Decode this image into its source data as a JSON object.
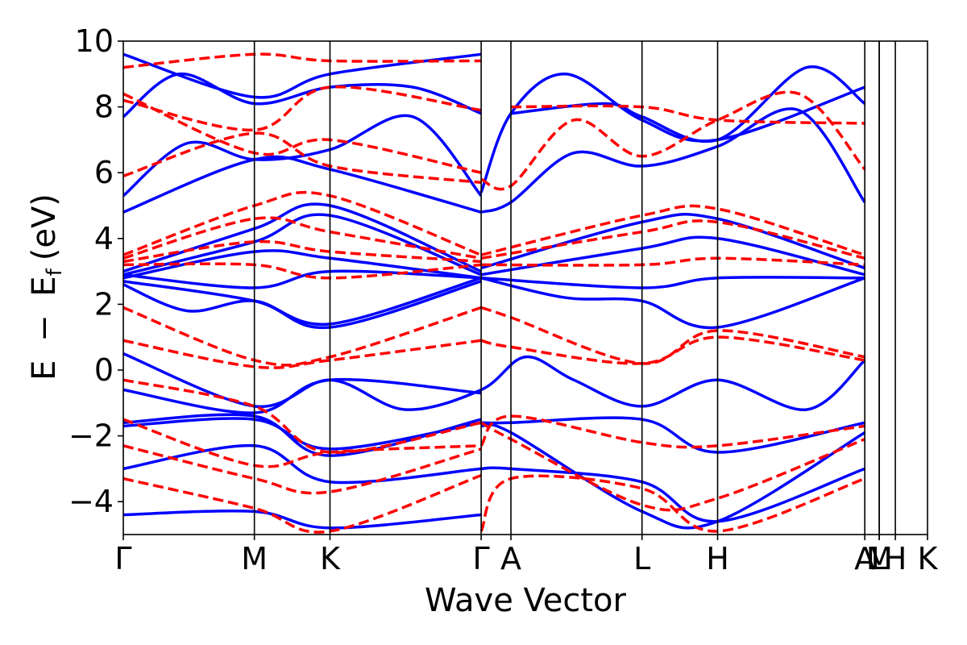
{
  "chart_data": {
    "type": "line",
    "title": "",
    "xlabel": "Wave Vector",
    "ylabel": {
      "E": "E",
      "minus": "−",
      "sub_E": "E",
      "sub": "f",
      "unit": "(eV)"
    },
    "ylim": [
      -5,
      10
    ],
    "y_ticks": [
      -4,
      -2,
      0,
      2,
      4,
      6,
      8,
      10
    ],
    "y_tick_labels": [
      "−4",
      "−2",
      "0",
      "2",
      "4",
      "6",
      "8",
      "10"
    ],
    "grid": false,
    "kpath_length": 1.0,
    "kpoints": [
      {
        "label": "Γ",
        "x": 0.0
      },
      {
        "label": "M",
        "x": 0.163
      },
      {
        "label": "K",
        "x": 0.257
      },
      {
        "label": "Γ",
        "x": 0.445
      },
      {
        "label": "A",
        "x": 0.482
      },
      {
        "label": "L",
        "x": 0.645
      },
      {
        "label": "H",
        "x": 0.739
      },
      {
        "label": "A",
        "x": 0.922
      },
      {
        "label": "L",
        "x": 0.94
      },
      {
        "label": "M",
        "x": 0.94
      },
      {
        "label": "H",
        "x": 0.96
      },
      {
        "label": "K",
        "x": 1.0
      }
    ],
    "colors": {
      "solid": "#0000ff",
      "dashed": "#ff0000",
      "axes": "#000000"
    },
    "series": [
      {
        "style": "solid",
        "color": "#0000ff",
        "bands": [
          {
            "x": [
              0,
              0.163,
              0.257,
              0.445
            ],
            "y": [
              4.8,
              6.4,
              6.1,
              4.8
            ]
          },
          {
            "x": [
              0,
              0.08,
              0.163,
              0.257,
              0.36,
              0.445
            ],
            "y": [
              5.3,
              6.9,
              6.4,
              6.7,
              7.7,
              5.3
            ]
          },
          {
            "x": [
              0.445,
              0.482,
              0.56,
              0.645,
              0.739,
              0.84,
              0.922
            ],
            "y": [
              4.8,
              5.1,
              6.6,
              6.2,
              6.8,
              7.9,
              5.1
            ]
          },
          {
            "x": [
              0.445,
              0.482,
              0.55,
              0.645,
              0.739,
              0.922
            ],
            "y": [
              5.4,
              7.8,
              9.0,
              7.6,
              7.0,
              8.6
            ]
          },
          {
            "x": [
              0,
              0.07,
              0.163,
              0.257,
              0.36,
              0.445
            ],
            "y": [
              7.7,
              9.0,
              8.1,
              8.6,
              8.6,
              7.8
            ]
          },
          {
            "x": [
              0,
              0.163,
              0.257,
              0.445
            ],
            "y": [
              9.6,
              8.3,
              9.0,
              9.6
            ]
          },
          {
            "x": [
              0.482,
              0.6,
              0.645,
              0.739,
              0.85,
              0.922
            ],
            "y": [
              7.8,
              8.1,
              7.7,
              7.0,
              9.2,
              8.1
            ]
          },
          {
            "x": [
              0,
              0.163,
              0.257,
              0.445
            ],
            "y": [
              3.0,
              4.3,
              5.0,
              3.0
            ]
          },
          {
            "x": [
              0,
              0.163,
              0.257,
              0.445
            ],
            "y": [
              2.9,
              3.9,
              4.7,
              2.9
            ]
          },
          {
            "x": [
              0,
              0.163,
              0.257,
              0.445
            ],
            "y": [
              2.8,
              3.6,
              3.4,
              2.8
            ]
          },
          {
            "x": [
              0,
              0.163,
              0.257,
              0.445
            ],
            "y": [
              2.9,
              2.5,
              3.0,
              2.8
            ]
          },
          {
            "x": [
              0,
              0.163,
              0.257,
              0.445
            ],
            "y": [
              2.7,
              2.1,
              1.3,
              2.7
            ]
          },
          {
            "x": [
              0,
              0.08,
              0.163,
              0.257,
              0.445
            ],
            "y": [
              2.6,
              1.8,
              2.1,
              1.4,
              2.8
            ]
          },
          {
            "x": [
              0.445,
              0.645,
              0.739,
              0.922
            ],
            "y": [
              3.1,
              4.5,
              4.6,
              3.1
            ]
          },
          {
            "x": [
              0.445,
              0.645,
              0.739,
              0.922
            ],
            "y": [
              2.9,
              3.7,
              4.0,
              2.9
            ]
          },
          {
            "x": [
              0.445,
              0.645,
              0.739,
              0.922
            ],
            "y": [
              2.8,
              2.5,
              2.8,
              2.8
            ]
          },
          {
            "x": [
              0.445,
              0.55,
              0.645,
              0.739,
              0.922
            ],
            "y": [
              2.8,
              2.2,
              2.1,
              1.3,
              2.8
            ]
          },
          {
            "x": [
              0,
              0.163,
              0.257,
              0.35,
              0.445,
              0.5,
              0.56,
              0.645,
              0.739,
              0.85,
              0.922
            ],
            "y": [
              0.5,
              -1.1,
              -0.3,
              -1.2,
              -0.6,
              0.4,
              -0.3,
              -1.1,
              -0.3,
              -1.2,
              0.3
            ]
          },
          {
            "x": [
              0,
              0.163,
              0.257,
              0.445
            ],
            "y": [
              -0.6,
              -1.3,
              -0.3,
              -0.7
            ]
          },
          {
            "x": [
              0,
              0.163,
              0.257,
              0.445
            ],
            "y": [
              -1.6,
              -1.4,
              -2.6,
              -1.5
            ]
          },
          {
            "x": [
              0,
              0.163,
              0.257,
              0.445
            ],
            "y": [
              -1.7,
              -1.5,
              -2.4,
              -1.6
            ]
          },
          {
            "x": [
              0,
              0.163,
              0.257,
              0.445
            ],
            "y": [
              -3.0,
              -2.3,
              -3.4,
              -3.0
            ]
          },
          {
            "x": [
              0,
              0.163,
              0.257,
              0.445
            ],
            "y": [
              -4.4,
              -4.3,
              -4.8,
              -4.4
            ]
          },
          {
            "x": [
              0.445,
              0.482,
              0.645,
              0.739,
              0.922
            ],
            "y": [
              -1.6,
              -1.6,
              -1.5,
              -2.5,
              -1.6
            ]
          },
          {
            "x": [
              0.445,
              0.482,
              0.645,
              0.739,
              0.922
            ],
            "y": [
              -3.0,
              -3.0,
              -3.4,
              -4.6,
              -3.0
            ]
          },
          {
            "x": [
              0.445,
              0.482,
              0.645,
              0.739,
              0.922
            ],
            "y": [
              -1.7,
              -1.9,
              -4.3,
              -4.6,
              -1.9
            ]
          }
        ]
      },
      {
        "style": "dashed",
        "color": "#ff0000",
        "bands": [
          {
            "x": [
              0,
              0.163,
              0.257,
              0.445
            ],
            "y": [
              5.9,
              7.2,
              6.2,
              5.7
            ]
          },
          {
            "x": [
              0,
              0.163,
              0.257,
              0.445
            ],
            "y": [
              8.2,
              7.3,
              8.6,
              7.9
            ]
          },
          {
            "x": [
              0,
              0.163,
              0.257,
              0.445
            ],
            "y": [
              8.4,
              6.6,
              7.0,
              6.0
            ]
          },
          {
            "x": [
              0,
              0.163,
              0.257,
              0.445
            ],
            "y": [
              9.2,
              9.6,
              9.4,
              9.4
            ]
          },
          {
            "x": [
              0.445,
              0.482,
              0.56,
              0.645,
              0.739,
              0.84,
              0.922
            ],
            "y": [
              5.8,
              5.6,
              7.6,
              6.5,
              7.6,
              8.4,
              6.1
            ]
          },
          {
            "x": [
              0.482,
              0.645,
              0.739,
              0.922
            ],
            "y": [
              8.0,
              8.0,
              7.6,
              7.5
            ]
          },
          {
            "x": [
              0,
              0.163,
              0.257,
              0.445
            ],
            "y": [
              3.5,
              5.0,
              5.3,
              3.5
            ]
          },
          {
            "x": [
              0,
              0.163,
              0.257,
              0.445
            ],
            "y": [
              3.4,
              4.6,
              4.2,
              3.4
            ]
          },
          {
            "x": [
              0,
              0.163,
              0.257,
              0.445
            ],
            "y": [
              3.3,
              3.9,
              3.6,
              3.3
            ]
          },
          {
            "x": [
              0,
              0.163,
              0.257,
              0.445
            ],
            "y": [
              3.2,
              3.2,
              2.8,
              3.2
            ]
          },
          {
            "x": [
              0.445,
              0.645,
              0.739,
              0.922
            ],
            "y": [
              3.5,
              4.7,
              4.9,
              3.5
            ]
          },
          {
            "x": [
              0.445,
              0.645,
              0.739,
              0.922
            ],
            "y": [
              3.4,
              4.2,
              4.5,
              3.4
            ]
          },
          {
            "x": [
              0.445,
              0.645,
              0.739,
              0.922
            ],
            "y": [
              3.2,
              3.2,
              3.4,
              3.2
            ]
          },
          {
            "x": [
              0,
              0.163,
              0.257,
              0.445
            ],
            "y": [
              1.9,
              0.3,
              0.4,
              1.9
            ]
          },
          {
            "x": [
              0,
              0.163,
              0.257,
              0.445
            ],
            "y": [
              0.9,
              0.1,
              0.3,
              0.9
            ]
          },
          {
            "x": [
              0.445,
              0.482,
              0.645,
              0.739,
              0.922
            ],
            "y": [
              1.9,
              1.6,
              0.2,
              1.2,
              0.4
            ]
          },
          {
            "x": [
              0.445,
              0.482,
              0.645,
              0.739,
              0.922
            ],
            "y": [
              0.9,
              0.7,
              0.2,
              1.0,
              0.3
            ]
          },
          {
            "x": [
              0,
              0.163,
              0.257,
              0.445
            ],
            "y": [
              -0.3,
              -1.1,
              -2.5,
              -1.6
            ]
          },
          {
            "x": [
              0,
              0.163,
              0.257,
              0.445
            ],
            "y": [
              -1.5,
              -2.9,
              -2.5,
              -2.3
            ]
          },
          {
            "x": [
              0,
              0.163,
              0.257,
              0.445
            ],
            "y": [
              -2.3,
              -3.3,
              -3.7,
              -2.4
            ]
          },
          {
            "x": [
              0,
              0.163,
              0.257,
              0.445
            ],
            "y": [
              -3.3,
              -4.2,
              -4.9,
              -3.2
            ]
          },
          {
            "x": [
              0.445,
              0.482,
              0.645,
              0.739,
              0.922
            ],
            "y": [
              -2.3,
              -1.4,
              -2.2,
              -2.3,
              -1.7
            ]
          },
          {
            "x": [
              0.445,
              0.482,
              0.645,
              0.739,
              0.922
            ],
            "y": [
              -1.6,
              -2.1,
              -4.1,
              -3.9,
              -2.1
            ]
          },
          {
            "x": [
              0.445,
              0.482,
              0.645,
              0.739,
              0.922
            ],
            "y": [
              -4.9,
              -3.3,
              -3.6,
              -4.9,
              -3.3
            ]
          }
        ]
      }
    ]
  }
}
